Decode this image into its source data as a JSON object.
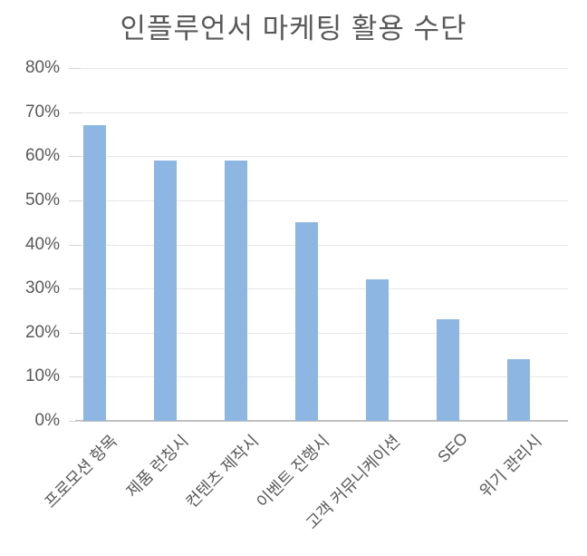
{
  "chart_data": {
    "type": "bar",
    "title": "인플루언서 마케팅 활용 수단",
    "categories": [
      "프로모션 항목",
      "제품 런칭시",
      "컨텐츠 제작시",
      "이벤트 진행시",
      "고객 커뮤니케이션",
      "SEO",
      "위기 관리시"
    ],
    "values": [
      67,
      59,
      59,
      45,
      32,
      23,
      14
    ],
    "unit": "%",
    "xlabel": "",
    "ylabel": "",
    "ylim": [
      0,
      80
    ],
    "ytick_step": 10,
    "ytick_labels": [
      "0%",
      "10%",
      "20%",
      "30%",
      "40%",
      "50%",
      "60%",
      "70%",
      "80%"
    ],
    "grid": true,
    "legend": false,
    "colors": {
      "bar": "#8DB7E2",
      "gridline": "#E7E7E7",
      "tick": "#D6D6D6",
      "axis_line": "#BFBFBF",
      "text": "#595959",
      "background": "#FFFFFF"
    }
  }
}
